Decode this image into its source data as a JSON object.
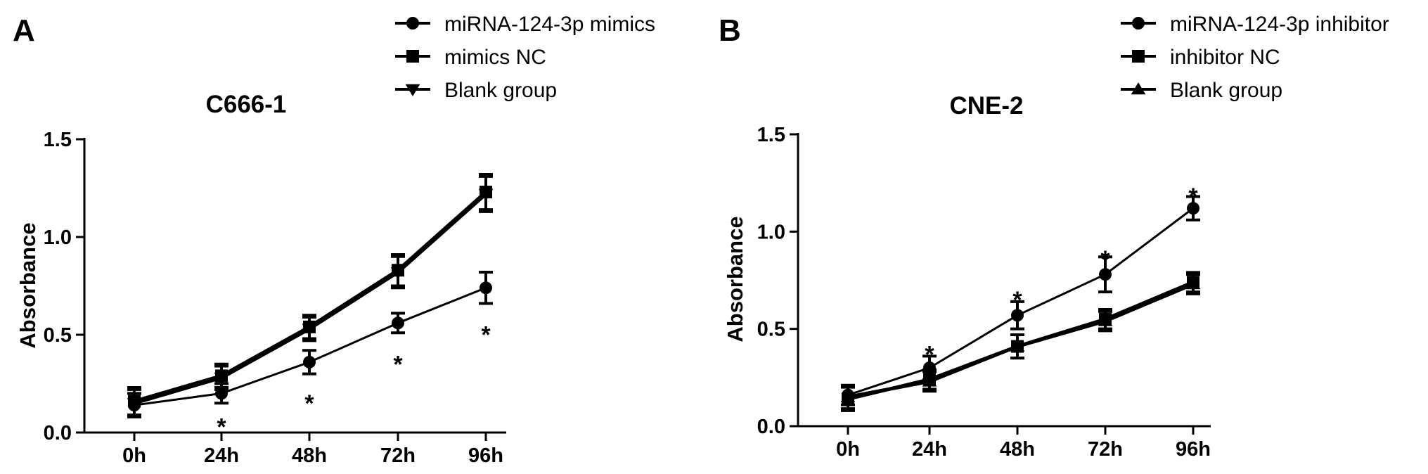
{
  "chart_data": [
    {
      "type": "line",
      "panel": "A",
      "title": "C666-1",
      "xlabel": "",
      "ylabel": "Absorbance",
      "categories": [
        "0h",
        "24h",
        "48h",
        "72h",
        "96h"
      ],
      "ylim": [
        0.0,
        1.5
      ],
      "yticks": [
        0.0,
        0.5,
        1.0,
        1.5
      ],
      "ytick_labels": [
        "0.0",
        "0.5",
        "1.0",
        "1.5"
      ],
      "grid": false,
      "legend_position": "top-right",
      "series": [
        {
          "name": "miRNA-124-3p mimics",
          "marker": "circle",
          "linewidth": "thin",
          "values": [
            0.14,
            0.2,
            0.36,
            0.56,
            0.74
          ],
          "errors": [
            0.06,
            0.05,
            0.06,
            0.05,
            0.08
          ]
        },
        {
          "name": "mimics NC",
          "marker": "square",
          "linewidth": "thick",
          "values": [
            0.16,
            0.29,
            0.54,
            0.83,
            1.23
          ],
          "errors": [
            0.07,
            0.06,
            0.06,
            0.08,
            0.09
          ]
        },
        {
          "name": "Blank group",
          "marker": "triangle-down",
          "linewidth": "thick",
          "values": [
            0.15,
            0.28,
            0.53,
            0.82,
            1.22
          ],
          "errors": [
            0.07,
            0.06,
            0.06,
            0.08,
            0.09
          ]
        }
      ],
      "annotations": [
        {
          "text": "*",
          "category": "24h",
          "value": 0.06
        },
        {
          "text": "*",
          "category": "48h",
          "value": 0.18
        },
        {
          "text": "*",
          "category": "72h",
          "value": 0.38
        },
        {
          "text": "*",
          "category": "96h",
          "value": 0.53
        }
      ]
    },
    {
      "type": "line",
      "panel": "B",
      "title": "CNE-2",
      "xlabel": "",
      "ylabel": "Absorbance",
      "categories": [
        "0h",
        "24h",
        "48h",
        "72h",
        "96h"
      ],
      "ylim": [
        0.0,
        1.5
      ],
      "yticks": [
        0.0,
        0.5,
        1.0,
        1.5
      ],
      "ytick_labels": [
        "0.0",
        "0.5",
        "1.0",
        "1.5"
      ],
      "grid": false,
      "legend_position": "top-right",
      "series": [
        {
          "name": "miRNA-124-3p inhibitor",
          "marker": "circle",
          "linewidth": "thin",
          "values": [
            0.16,
            0.3,
            0.57,
            0.78,
            1.12
          ],
          "errors": [
            0.05,
            0.06,
            0.07,
            0.09,
            0.06
          ]
        },
        {
          "name": "inhibitor NC",
          "marker": "square",
          "linewidth": "thick",
          "values": [
            0.14,
            0.24,
            0.41,
            0.55,
            0.74
          ],
          "errors": [
            0.06,
            0.05,
            0.06,
            0.05,
            0.05
          ]
        },
        {
          "name": "Blank group",
          "marker": "triangle-up",
          "linewidth": "thick",
          "values": [
            0.15,
            0.23,
            0.41,
            0.54,
            0.73
          ],
          "errors": [
            0.06,
            0.05,
            0.06,
            0.05,
            0.05
          ]
        }
      ],
      "annotations": [
        {
          "text": "*",
          "category": "24h",
          "value": 0.4
        },
        {
          "text": "*",
          "category": "48h",
          "value": 0.68
        },
        {
          "text": "*",
          "category": "72h",
          "value": 0.89
        },
        {
          "text": "*",
          "category": "96h",
          "value": 1.21
        }
      ]
    }
  ]
}
